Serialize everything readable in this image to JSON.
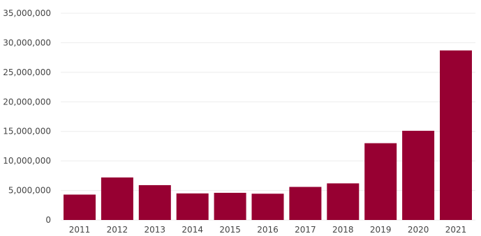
{
  "chart_data": {
    "type": "bar",
    "title": "",
    "xlabel": "",
    "ylabel": "",
    "categories": [
      "2011",
      "2012",
      "2013",
      "2014",
      "2015",
      "2016",
      "2017",
      "2018",
      "2019",
      "2020",
      "2021"
    ],
    "values": [
      4300000,
      7200000,
      5900000,
      4500000,
      4600000,
      4450000,
      5600000,
      6200000,
      13000000,
      15100000,
      28700000
    ],
    "ylim": [
      0,
      35000000
    ],
    "yticks": [
      0,
      5000000,
      10000000,
      15000000,
      20000000,
      25000000,
      30000000,
      35000000
    ],
    "ytick_labels": [
      "0",
      "5,000,000",
      "10,000,000",
      "15,000,000",
      "20,000,000",
      "25,000,000",
      "30,000,000",
      "35,000,000"
    ],
    "grid": true,
    "legend": "none",
    "colors": {
      "bar": "#970032",
      "grid": "#ececec",
      "text": "#444444"
    }
  }
}
